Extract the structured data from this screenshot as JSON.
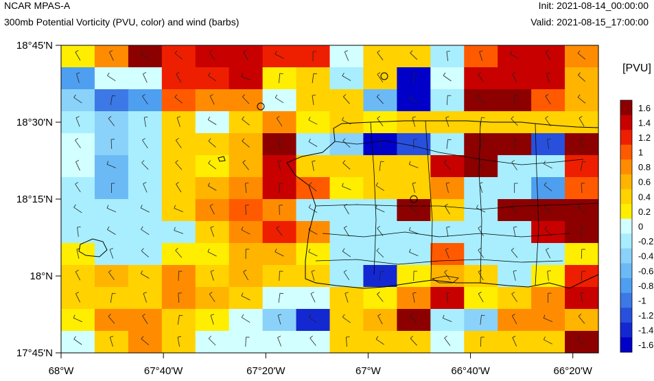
{
  "header": {
    "title_left": "NCAR MPAS-A",
    "subtitle_left": "300mb Potential Vorticity (PVU, color) and wind (barbs)",
    "title_right": "Init: 2021-08-14_00:00:00",
    "subtitle_right": "Valid: 2021-08-15_17:00:00"
  },
  "map": {
    "region": "Puerto Rico",
    "lon_range": [
      -68.0,
      -66.25
    ],
    "lat_range": [
      17.75,
      18.75
    ],
    "lon_ticks": [
      {
        "value": -68.0,
        "label": "68°W"
      },
      {
        "value": -67.6667,
        "label": "67°40'W"
      },
      {
        "value": -67.3333,
        "label": "67°20'W"
      },
      {
        "value": -67.0,
        "label": "67°W"
      },
      {
        "value": -66.6667,
        "label": "66°40'W"
      },
      {
        "value": -66.3333,
        "label": "66°20'W"
      }
    ],
    "lat_ticks": [
      {
        "value": 18.75,
        "label": "18°45'N"
      },
      {
        "value": 18.5,
        "label": "18°30'N"
      },
      {
        "value": 18.25,
        "label": "18°15'N"
      },
      {
        "value": 18.0,
        "label": "18°N"
      },
      {
        "value": 17.75,
        "label": "17°45'N"
      }
    ]
  },
  "colorbar": {
    "units": "[PVU]",
    "levels": [
      "1.6",
      "1.4",
      "1.2",
      "1",
      "0.8",
      "0.6",
      "0.4",
      "0.2",
      "0",
      "-0.2",
      "-0.4",
      "-0.6",
      "-0.8",
      "-1",
      "-1.2",
      "-1.4",
      "-1.6"
    ],
    "colors": [
      "#8c0000",
      "#c80000",
      "#ee1e00",
      "#ff5a00",
      "#ff8c00",
      "#ffb400",
      "#ffd200",
      "#ffee00",
      "#d2ffff",
      "#a8eeff",
      "#8ad2fa",
      "#6cbaf5",
      "#4e9ff0",
      "#3c78e6",
      "#2850dc",
      "#1428d2",
      "#0000c8"
    ]
  },
  "chart_data": {
    "type": "heatmap",
    "title": "300mb Potential Vorticity (PVU, color) and wind (barbs)",
    "units": "PVU",
    "note_values": "cell values are color-class indices (0 = >1.6 PVU darkest red ... 17 = <-1.6 PVU darkest blue), rows north to south",
    "rows": [
      [
        7,
        4,
        0,
        2,
        1,
        1,
        2,
        2,
        8,
        6,
        6,
        9,
        3,
        1,
        1,
        4
      ],
      [
        12,
        8,
        8,
        2,
        2,
        1,
        7,
        6,
        9,
        6,
        17,
        8,
        1,
        1,
        1,
        5
      ],
      [
        10,
        13,
        12,
        3,
        4,
        4,
        8,
        6,
        6,
        11,
        17,
        9,
        0,
        0,
        3,
        5
      ],
      [
        9,
        10,
        9,
        6,
        8,
        6,
        4,
        7,
        6,
        7,
        6,
        6,
        6,
        6,
        6,
        6
      ],
      [
        8,
        10,
        9,
        6,
        6,
        5,
        0,
        9,
        10,
        17,
        14,
        9,
        0,
        0,
        14,
        0
      ],
      [
        8,
        11,
        9,
        6,
        7,
        5,
        1,
        6,
        6,
        6,
        6,
        1,
        0,
        9,
        9,
        2
      ],
      [
        9,
        11,
        9,
        6,
        5,
        4,
        1,
        3,
        7,
        6,
        6,
        4,
        9,
        9,
        12,
        3
      ],
      [
        9,
        9,
        9,
        6,
        4,
        3,
        4,
        9,
        9,
        9,
        0,
        6,
        9,
        0,
        0,
        0
      ],
      [
        9,
        9,
        9,
        9,
        6,
        4,
        2,
        4,
        9,
        9,
        9,
        9,
        9,
        9,
        1,
        0
      ],
      [
        7,
        9,
        9,
        7,
        7,
        5,
        5,
        7,
        9,
        9,
        9,
        3,
        9,
        9,
        9,
        7
      ],
      [
        6,
        5,
        6,
        4,
        6,
        5,
        6,
        6,
        9,
        15,
        7,
        5,
        6,
        9,
        7,
        2
      ],
      [
        6,
        6,
        6,
        4,
        5,
        6,
        8,
        8,
        6,
        7,
        4,
        1,
        7,
        6,
        4,
        1
      ],
      [
        7,
        4,
        4,
        6,
        7,
        8,
        10,
        15,
        6,
        5,
        0,
        9,
        10,
        4,
        4,
        5
      ],
      [
        8,
        6,
        4,
        6,
        8,
        8,
        8,
        8,
        6,
        6,
        6,
        8,
        6,
        6,
        6,
        0
      ]
    ]
  }
}
